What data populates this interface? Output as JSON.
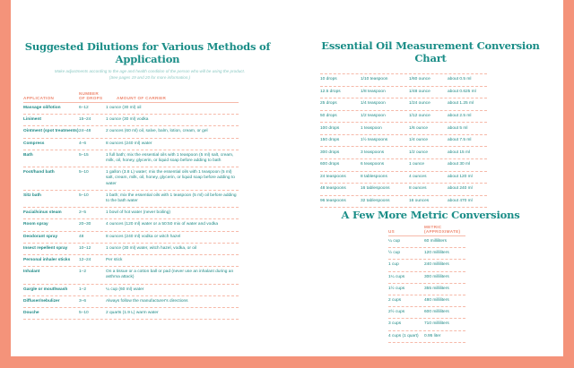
{
  "dilutions": {
    "title": "Suggested Dilutions for Various Methods of Application",
    "subtitle": "Make adjustments according to the age and health condition of the person who will be using the product. (See pages 19 and 20 for more information.)",
    "headers": [
      "APPLICATION",
      "NUMBER OF DROPS",
      "AMOUNT OF CARRIER"
    ],
    "rows": [
      [
        "Massage oil/lotion",
        "6–12",
        "1 ounce (30 ml) oil"
      ],
      [
        "Liniment",
        "15–24",
        "1 ounce (30 ml) vodka"
      ],
      [
        "Ointment (spot treatments)",
        "24–48",
        "2 ounces (60 ml) oil, salve, balm, lotion, cream, or gel"
      ],
      [
        "Compress",
        "4–6",
        "8 ounces (240 ml) water"
      ],
      [
        "Bath",
        "5–15",
        "1 full bath; mix the essential oils with 1 teaspoon (5 ml) salt, cream, milk, oil, honey, glycerin, or liquid soap before adding to bath"
      ],
      [
        "Foot/hand bath",
        "5–10",
        "1 gallon (3.8 L) water; mix the essential oils with 1 teaspoon (5 ml) salt, cream, milk, oil, honey, glycerin, or liquid soap before adding to water"
      ],
      [
        "Sitz bath",
        "5–10",
        "1 bath; mix the essential oils with 1 teaspoon (5 ml) oil before adding to the bath water"
      ],
      [
        "Facial/sinus steam",
        "2–5",
        "1 bowl of hot water (never boiling)"
      ],
      [
        "Room spray",
        "20–30",
        "4 ounces (120 ml) water or a 50:50 mix of water and vodka"
      ],
      [
        "Deodorant spray",
        "48",
        "8 ounces (240 ml) vodka or witch hazel"
      ],
      [
        "Insect repellent spray",
        "10–12",
        "1 ounce (30 ml) water, witch hazel, vodka, or oil"
      ],
      [
        "Personal inhaler sticks",
        "12–24",
        "Per stick"
      ],
      [
        "Inhalant",
        "1–2",
        "On a tissue or a cotton ball or pad (never use an inhalant during an asthma attack)"
      ],
      [
        "Gargle or mouthwash",
        "1–2",
        "¼ cup (60 ml) water"
      ],
      [
        "Diffuser/nebulizer",
        "3–6",
        "Always follow the manufacturer's directions"
      ],
      [
        "Douche",
        "5–10",
        "2 quarts (1.9 L) warm water"
      ]
    ]
  },
  "conversion": {
    "title": "Essential Oil Measurement Conversion Chart",
    "rows": [
      [
        "10 drops",
        "1/10 teaspoon",
        "1/60 ounce",
        "about 0.5 ml"
      ],
      [
        "12.5 drops",
        "1/8 teaspoon",
        "1/48 ounce",
        "about 0.625 ml"
      ],
      [
        "25 drops",
        "1/4 teaspoon",
        "1/24 ounce",
        "about 1.25 ml"
      ],
      [
        "50 drops",
        "1/2 teaspoon",
        "1/12 ounce",
        "about 2.5 ml"
      ],
      [
        "100 drops",
        "1 teaspoon",
        "1/6 ounce",
        "about 5 ml"
      ],
      [
        "150 drops",
        "1½ teaspoons",
        "1/4 ounce",
        "about 7.5 ml"
      ],
      [
        "300 drops",
        "3 teaspoons",
        "1/2 ounce",
        "about 15 ml"
      ],
      [
        "600 drops",
        "6 teaspoons",
        "1 ounce",
        "about 30 ml"
      ],
      [
        "24 teaspoons",
        "8 tablespoons",
        "4 ounces",
        "about 120 ml"
      ],
      [
        "48 teaspoons",
        "16 tablespoons",
        "8 ounces",
        "about 240 ml"
      ],
      [
        "96 teaspoons",
        "32 tablespoons",
        "16 ounces",
        "about 470 ml"
      ]
    ]
  },
  "metric": {
    "title": "A Few More Metric Conversions",
    "headers": [
      "US",
      "METRIC (APPROXIMATE)"
    ],
    "rows": [
      [
        "¼ cup",
        "60 milliliters"
      ],
      [
        "½ cup",
        "120 milliliters"
      ],
      [
        "1 cup",
        "240 milliliters"
      ],
      [
        "1¼ cups",
        "300 milliliters"
      ],
      [
        "1½ cups",
        "355 milliliters"
      ],
      [
        "2 cups",
        "480 milliliters"
      ],
      [
        "2½ cups",
        "600 milliliters"
      ],
      [
        "3 cups",
        "710 milliliters"
      ],
      [
        "4 cups (1 quart)",
        "0.95 liter"
      ]
    ]
  },
  "colors": {
    "accent": "#f4937a",
    "text": "#1f8a86"
  }
}
